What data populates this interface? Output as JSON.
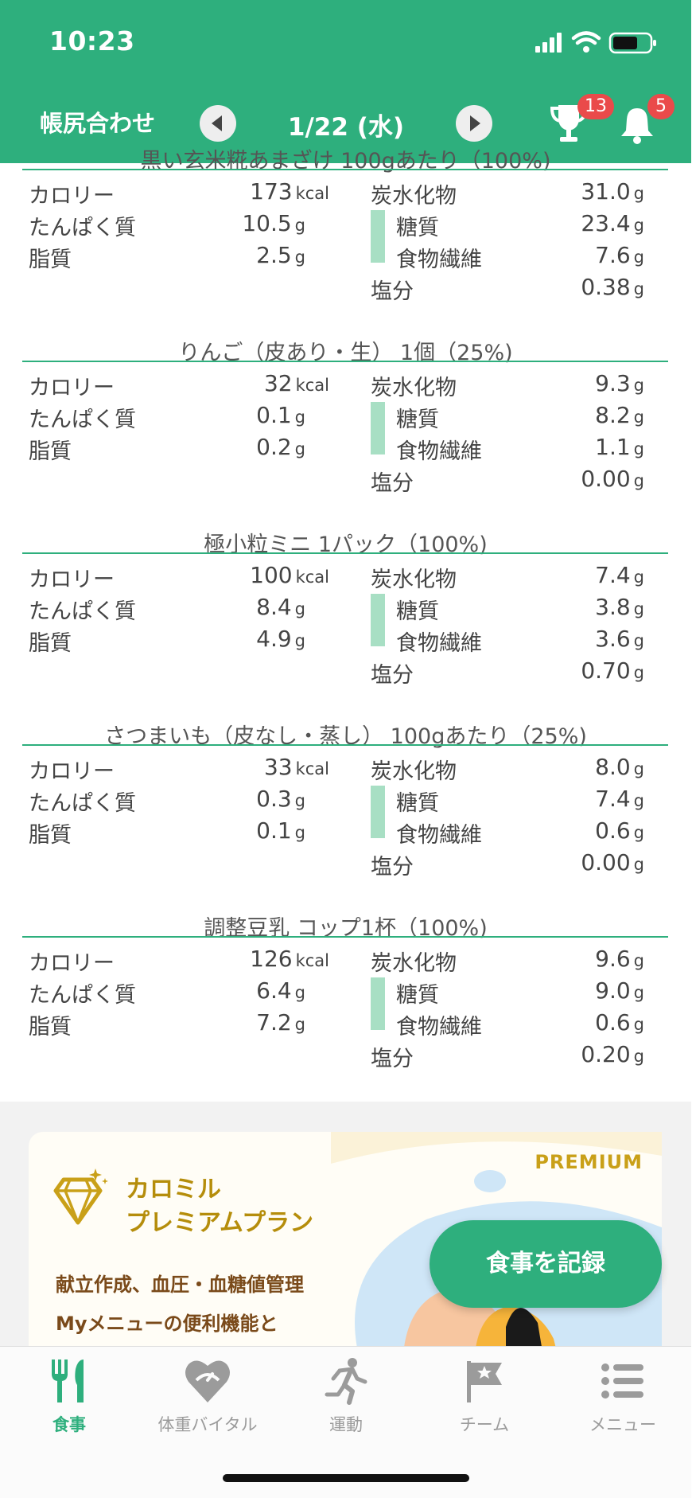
{
  "status_bar": {
    "time": "10:23"
  },
  "header": {
    "title": "帳尻合わせ",
    "date": "1/22 (水)",
    "trophy_count": "13",
    "notification_count": "5",
    "accent_color": "#2eaf7d"
  },
  "labels": {
    "calorie": "カロリー",
    "protein": "たんぱく質",
    "fat": "脂質",
    "carbs": "炭水化物",
    "sugar": "糖質",
    "fiber": "食物繊維",
    "salt": "塩分",
    "unit_kcal": "kcal",
    "unit_g": "g"
  },
  "foods": [
    {
      "title": "黒い玄米糀あまざけ 100gあたり（100%)",
      "calorie": "173",
      "protein": "10.5",
      "fat": "2.5",
      "carbs": "31.0",
      "sugar": "23.4",
      "fiber": "7.6",
      "salt": "0.38"
    },
    {
      "title": "りんご（皮あり・生） 1個（25%)",
      "calorie": "32",
      "protein": "0.1",
      "fat": "0.2",
      "carbs": "9.3",
      "sugar": "8.2",
      "fiber": "1.1",
      "salt": "0.00"
    },
    {
      "title": "極小粒ミニ 1パック（100%)",
      "calorie": "100",
      "protein": "8.4",
      "fat": "4.9",
      "carbs": "7.4",
      "sugar": "3.8",
      "fiber": "3.6",
      "salt": "0.70"
    },
    {
      "title": "さつまいも（皮なし・蒸し） 100gあたり（25%)",
      "calorie": "33",
      "protein": "0.3",
      "fat": "0.1",
      "carbs": "8.0",
      "sugar": "7.4",
      "fiber": "0.6",
      "salt": "0.00"
    },
    {
      "title": "調整豆乳 コップ1杯（100%)",
      "calorie": "126",
      "protein": "6.4",
      "fat": "7.2",
      "carbs": "9.6",
      "sugar": "9.0",
      "fiber": "0.6",
      "salt": "0.20"
    }
  ],
  "banner": {
    "tag": "PREMIUM",
    "plan_line1": "カロミル",
    "plan_line2": "プレミアムプラン",
    "promo_line1": "献立作成、血圧・血糖値管理",
    "promo_line2": "Myメニューの便利機能と"
  },
  "fab_label": "食事を記録",
  "tabs": [
    {
      "label": "食事",
      "icon": "fork-knife-icon"
    },
    {
      "label": "体重バイタル",
      "icon": "heart-scale-icon"
    },
    {
      "label": "運動",
      "icon": "running-person-icon"
    },
    {
      "label": "チーム",
      "icon": "flag-icon"
    },
    {
      "label": "メニュー",
      "icon": "list-menu-icon"
    }
  ]
}
